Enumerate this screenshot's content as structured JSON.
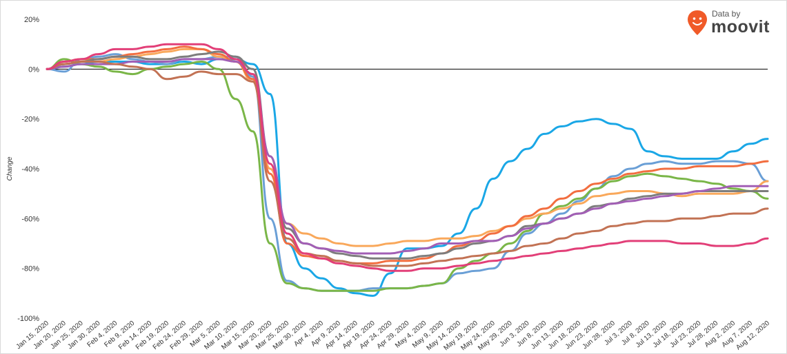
{
  "brand": {
    "small_text": "Data by",
    "big_text": "moovit",
    "pin_color": "#f05a28"
  },
  "chart_data": {
    "type": "line",
    "ylabel": "Change",
    "ylim": [
      -100,
      20
    ],
    "yticks": [
      "20%",
      "0%",
      "-20%",
      "-40%",
      "-60%",
      "-80%",
      "-100%"
    ],
    "ytick_values": [
      20,
      0,
      -20,
      -40,
      -60,
      -80,
      -100
    ],
    "x_dates": [
      "Jan 15, 2020",
      "Jan 20, 2020",
      "Jan 25, 2020",
      "Jan 30, 2020",
      "Feb 4, 2020",
      "Feb 9, 2020",
      "Feb 14, 2020",
      "Feb 19, 2020",
      "Feb 24, 2020",
      "Feb 29, 2020",
      "Mar 5, 2020",
      "Mar 10, 2020",
      "Mar 15, 2020",
      "Mar 20, 2020",
      "Mar 25, 2020",
      "Mar 30, 2020",
      "Apr 4, 2020",
      "Apr 9, 2020",
      "Apr 14, 2020",
      "Apr 19, 2020",
      "Apr 24, 2020",
      "Apr 29, 2020",
      "May 4, 2020",
      "May 9, 2020",
      "May 14, 2020",
      "May 19, 2020",
      "May 24, 2020",
      "May 29, 2020",
      "Jun 3, 2020",
      "Jun 8, 2020",
      "Jun 13, 2020",
      "Jun 18, 2020",
      "Jun 23, 2020",
      "Jun 28, 2020",
      "Jul 3, 2020",
      "Jul 8, 2020",
      "Jul 13, 2020",
      "Jul 18, 2020",
      "Jul 23, 2020",
      "Jul 28, 2020",
      "Aug 2, 2020",
      "Aug 7, 2020",
      "Aug 12, 2020"
    ],
    "grid": false,
    "zero_line": true,
    "series": [
      {
        "color": "#1aa7e6",
        "values": [
          0,
          1,
          2,
          3,
          3,
          3,
          2,
          2,
          3,
          2,
          4,
          4,
          2,
          -10,
          -70,
          -80,
          -84,
          -88,
          -90,
          -91,
          -82,
          -72,
          -72,
          -71,
          -66,
          -56,
          -44,
          -37,
          -32,
          -26,
          -23,
          -21,
          -20,
          -22,
          -24,
          -33,
          -35,
          -36,
          -36,
          -36,
          -33,
          -30,
          -28
        ]
      },
      {
        "color": "#6a9fd6",
        "values": [
          0,
          -1,
          4,
          5,
          6,
          4,
          3,
          2,
          4,
          4,
          5,
          5,
          -3,
          -60,
          -85,
          -88,
          -89,
          -89,
          -89,
          -88,
          -88,
          -88,
          -87,
          -86,
          -82,
          -81,
          -80,
          -73,
          -66,
          -62,
          -58,
          -53,
          -48,
          -43,
          -40,
          -38,
          -37,
          -38,
          -38,
          -37,
          -37,
          -38,
          -45
        ]
      },
      {
        "color": "#7ab648",
        "values": [
          0,
          4,
          2,
          1,
          -1,
          -2,
          0,
          1,
          2,
          3,
          0,
          -12,
          -25,
          -70,
          -86,
          -88,
          -89,
          -89,
          -89,
          -89,
          -88,
          -88,
          -87,
          -86,
          -80,
          -77,
          -74,
          -70,
          -65,
          -58,
          -55,
          -52,
          -48,
          -45,
          -43,
          -42,
          -43,
          -44,
          -45,
          -46,
          -48,
          -49,
          -52
        ]
      },
      {
        "color": "#f9a85b",
        "values": [
          0,
          2,
          3,
          3,
          4,
          5,
          6,
          7,
          8,
          8,
          5,
          3,
          -5,
          -40,
          -62,
          -66,
          -68,
          -70,
          -71,
          -71,
          -70,
          -69,
          -69,
          -68,
          -68,
          -67,
          -65,
          -63,
          -60,
          -58,
          -56,
          -54,
          -51,
          -50,
          -49,
          -49,
          -50,
          -51,
          -50,
          -50,
          -50,
          -49,
          -45
        ]
      },
      {
        "color": "#f26e40",
        "values": [
          0,
          3,
          4,
          4,
          5,
          6,
          7,
          8,
          9,
          8,
          6,
          3,
          -4,
          -42,
          -70,
          -75,
          -76,
          -77,
          -78,
          -78,
          -77,
          -77,
          -76,
          -74,
          -71,
          -69,
          -66,
          -63,
          -59,
          -56,
          -52,
          -49,
          -46,
          -44,
          -42,
          -41,
          -40,
          -40,
          -39,
          -39,
          -39,
          -38,
          -37
        ]
      },
      {
        "color": "#7d7d7d",
        "values": [
          0,
          2,
          3,
          4,
          5,
          5,
          4,
          4,
          5,
          6,
          7,
          5,
          0,
          -35,
          -64,
          -70,
          -72,
          -74,
          -75,
          -76,
          -76,
          -76,
          -75,
          -74,
          -72,
          -70,
          -69,
          -67,
          -63,
          -62,
          -60,
          -58,
          -55,
          -54,
          -52,
          -51,
          -50,
          -50,
          -49,
          -49,
          -49,
          -49,
          -49
        ]
      },
      {
        "color": "#a25fb5",
        "values": [
          0,
          1,
          2,
          2,
          2,
          3,
          3,
          3,
          4,
          4,
          4,
          3,
          -2,
          -35,
          -62,
          -70,
          -72,
          -73,
          -74,
          -74,
          -74,
          -73,
          -72,
          -70,
          -70,
          -69,
          -69,
          -67,
          -64,
          -62,
          -60,
          -58,
          -56,
          -54,
          -53,
          -52,
          -51,
          -50,
          -49,
          -48,
          -47,
          -47,
          -47
        ]
      },
      {
        "color": "#c27254",
        "values": [
          0,
          2,
          3,
          3,
          2,
          1,
          0,
          -4,
          -3,
          -1,
          -2,
          -2,
          -5,
          -45,
          -68,
          -74,
          -75,
          -77,
          -78,
          -79,
          -79,
          -79,
          -78,
          -77,
          -76,
          -75,
          -74,
          -73,
          -71,
          -70,
          -68,
          -66,
          -65,
          -63,
          -62,
          -61,
          -61,
          -60,
          -60,
          -59,
          -58,
          -58,
          -56
        ]
      },
      {
        "color": "#e23f78",
        "values": [
          0,
          3,
          4,
          6,
          8,
          8,
          9,
          10,
          10,
          10,
          8,
          4,
          -2,
          -38,
          -66,
          -74,
          -76,
          -78,
          -79,
          -80,
          -81,
          -81,
          -80,
          -80,
          -79,
          -78,
          -77,
          -76,
          -75,
          -74,
          -73,
          -72,
          -71,
          -70,
          -69,
          -69,
          -69,
          -70,
          -70,
          -71,
          -71,
          -70,
          -68
        ]
      }
    ]
  }
}
